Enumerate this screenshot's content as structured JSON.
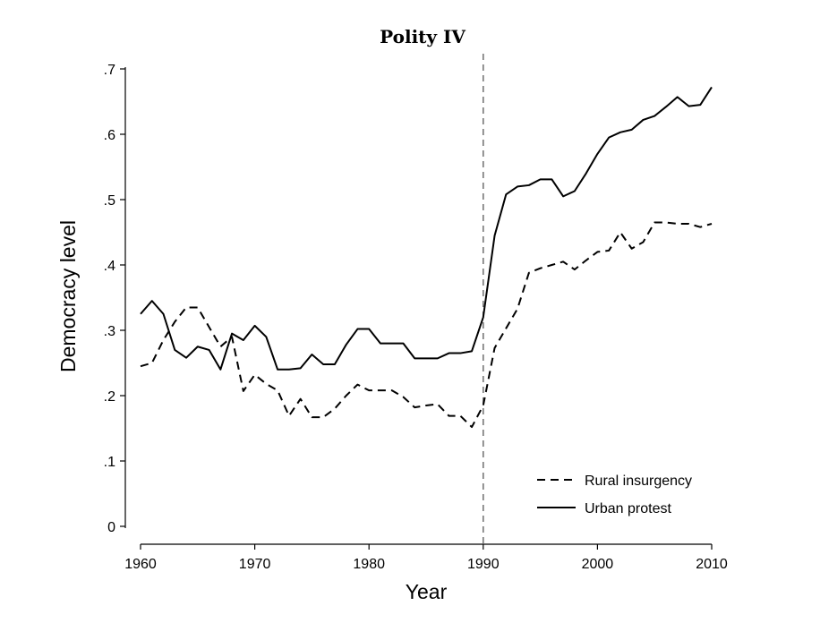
{
  "chart_data": {
    "type": "line",
    "title": "Polity IV",
    "xlabel": "Year",
    "ylabel": "Democracy level",
    "xlim": [
      1960,
      2010
    ],
    "ylim": [
      0,
      0.7
    ],
    "x_ticks": [
      1960,
      1970,
      1980,
      1990,
      2000,
      2010
    ],
    "x_tick_labels": [
      "1960",
      "1970",
      "1980",
      "1990",
      "2000",
      "2010"
    ],
    "y_ticks": [
      0,
      0.1,
      0.2,
      0.3,
      0.4,
      0.5,
      0.6,
      0.7
    ],
    "y_tick_labels": [
      "0",
      ".1",
      ".2",
      ".3",
      ".4",
      ".5",
      ".6",
      ".7"
    ],
    "grid": false,
    "legend_position": "bottom-right",
    "reference_line": {
      "x": 1990,
      "style": "dashed",
      "color": "#777777"
    },
    "x": [
      1960,
      1961,
      1962,
      1963,
      1964,
      1965,
      1966,
      1967,
      1968,
      1969,
      1970,
      1971,
      1972,
      1973,
      1974,
      1975,
      1976,
      1977,
      1978,
      1979,
      1980,
      1981,
      1982,
      1983,
      1984,
      1985,
      1986,
      1987,
      1988,
      1989,
      1990,
      1991,
      1992,
      1993,
      1994,
      1995,
      1996,
      1997,
      1998,
      1999,
      2000,
      2001,
      2002,
      2003,
      2004,
      2005,
      2006,
      2007,
      2008,
      2009,
      2010
    ],
    "series": [
      {
        "name": "Rural insurgency",
        "style": "dashed",
        "color": "#000000",
        "values": [
          0.245,
          0.25,
          0.285,
          0.313,
          0.335,
          0.335,
          0.305,
          0.275,
          0.29,
          0.207,
          0.232,
          0.218,
          0.208,
          0.169,
          0.195,
          0.167,
          0.167,
          0.18,
          0.2,
          0.217,
          0.208,
          0.208,
          0.208,
          0.198,
          0.182,
          0.185,
          0.187,
          0.169,
          0.169,
          0.152,
          0.185,
          0.273,
          0.303,
          0.333,
          0.388,
          0.395,
          0.4,
          0.405,
          0.393,
          0.407,
          0.42,
          0.422,
          0.45,
          0.425,
          0.435,
          0.465,
          0.465,
          0.463,
          0.463,
          0.458,
          0.463
        ]
      },
      {
        "name": "Urban protest",
        "style": "solid",
        "color": "#000000",
        "values": [
          0.325,
          0.345,
          0.325,
          0.27,
          0.258,
          0.275,
          0.27,
          0.24,
          0.295,
          0.285,
          0.307,
          0.29,
          0.24,
          0.24,
          0.242,
          0.263,
          0.248,
          0.248,
          0.278,
          0.302,
          0.302,
          0.28,
          0.28,
          0.28,
          0.257,
          0.257,
          0.257,
          0.265,
          0.265,
          0.268,
          0.32,
          0.445,
          0.508,
          0.52,
          0.522,
          0.531,
          0.531,
          0.505,
          0.513,
          0.54,
          0.57,
          0.595,
          0.603,
          0.607,
          0.622,
          0.628,
          0.642,
          0.657,
          0.643,
          0.645,
          0.672
        ]
      }
    ]
  }
}
